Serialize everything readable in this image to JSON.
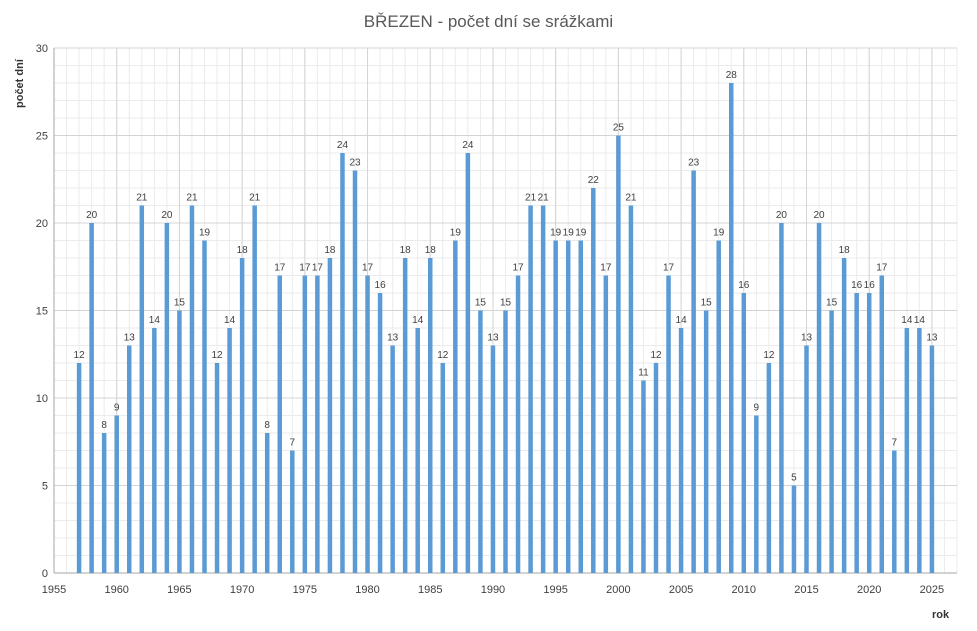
{
  "chart_data": {
    "type": "bar",
    "title": "BŘEZEN - počet dní se srážkami",
    "xlabel": "rok",
    "ylabel": "počet dní",
    "xlim": [
      1955,
      2027
    ],
    "ylim": [
      0,
      30
    ],
    "x_ticks": [
      "1955",
      "1960",
      "1965",
      "1970",
      "1975",
      "1980",
      "1985",
      "1990",
      "1995",
      "2000",
      "2005",
      "2010",
      "2015",
      "2020",
      "2025"
    ],
    "y_ticks": [
      "0",
      "5",
      "10",
      "15",
      "20",
      "25",
      "30"
    ],
    "grid": true,
    "bar_color": "#5b9bd5",
    "x": [
      1957,
      1958,
      1959,
      1960,
      1961,
      1962,
      1963,
      1964,
      1965,
      1966,
      1967,
      1968,
      1969,
      1970,
      1971,
      1972,
      1973,
      1974,
      1975,
      1976,
      1977,
      1978,
      1979,
      1980,
      1981,
      1982,
      1983,
      1984,
      1985,
      1986,
      1987,
      1988,
      1989,
      1990,
      1991,
      1992,
      1993,
      1994,
      1995,
      1996,
      1997,
      1998,
      1999,
      2000,
      2001,
      2002,
      2003,
      2004,
      2005,
      2006,
      2007,
      2008,
      2009,
      2010,
      2011,
      2012,
      2013,
      2014,
      2015,
      2016,
      2017,
      2018,
      2019,
      2020,
      2021,
      2022,
      2023,
      2024,
      2025
    ],
    "values": [
      12,
      20,
      8,
      9,
      13,
      21,
      14,
      20,
      15,
      21,
      19,
      12,
      14,
      18,
      21,
      8,
      17,
      7,
      17,
      17,
      18,
      24,
      23,
      17,
      16,
      13,
      18,
      14,
      18,
      12,
      19,
      24,
      15,
      13,
      15,
      17,
      21,
      21,
      19,
      19,
      19,
      22,
      17,
      25,
      21,
      11,
      12,
      17,
      14,
      23,
      15,
      19,
      28,
      16,
      9,
      12,
      20,
      5,
      13,
      20,
      15,
      18,
      16,
      16,
      17,
      7,
      14,
      14,
      13
    ]
  }
}
